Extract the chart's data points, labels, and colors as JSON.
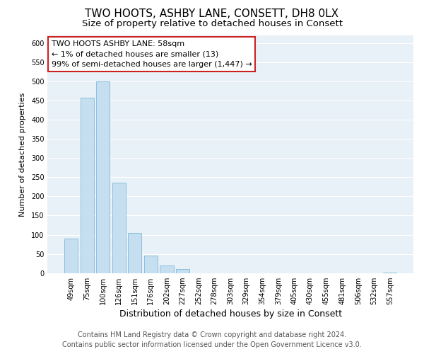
{
  "title": "TWO HOOTS, ASHBY LANE, CONSETT, DH8 0LX",
  "subtitle": "Size of property relative to detached houses in Consett",
  "xlabel": "Distribution of detached houses by size in Consett",
  "ylabel": "Number of detached properties",
  "bar_labels": [
    "49sqm",
    "75sqm",
    "100sqm",
    "126sqm",
    "151sqm",
    "176sqm",
    "202sqm",
    "227sqm",
    "252sqm",
    "278sqm",
    "303sqm",
    "329sqm",
    "354sqm",
    "379sqm",
    "405sqm",
    "430sqm",
    "455sqm",
    "481sqm",
    "506sqm",
    "532sqm",
    "557sqm"
  ],
  "bar_values": [
    90,
    457,
    500,
    236,
    105,
    45,
    20,
    10,
    0,
    0,
    0,
    0,
    0,
    0,
    0,
    0,
    0,
    0,
    0,
    0,
    2
  ],
  "bar_color": "#c5dff0",
  "bar_edge_color": "#7fb8d8",
  "ylim": [
    0,
    620
  ],
  "yticks": [
    0,
    50,
    100,
    150,
    200,
    250,
    300,
    350,
    400,
    450,
    500,
    550,
    600
  ],
  "annotation_title": "TWO HOOTS ASHBY LANE: 58sqm",
  "annotation_line1": "← 1% of detached houses are smaller (13)",
  "annotation_line2": "99% of semi-detached houses are larger (1,447) →",
  "annotation_box_color": "#ffffff",
  "annotation_box_edge": "#cc2222",
  "footer_line1": "Contains HM Land Registry data © Crown copyright and database right 2024.",
  "footer_line2": "Contains public sector information licensed under the Open Government Licence v3.0.",
  "background_color": "#ffffff",
  "plot_bg_color": "#e8f0f8",
  "grid_color": "#ffffff",
  "title_fontsize": 11,
  "subtitle_fontsize": 9.5,
  "xlabel_fontsize": 9,
  "ylabel_fontsize": 8,
  "footer_fontsize": 7,
  "tick_label_fontsize": 7
}
